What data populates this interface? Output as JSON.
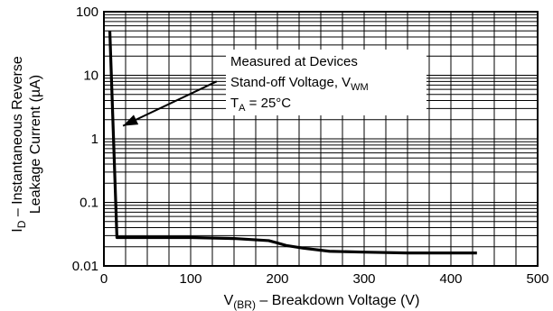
{
  "chart_data": {
    "type": "line",
    "xlabel": {
      "main": "V",
      "sub": "(BR)",
      "rest": " – Breakdown Voltage (V)"
    },
    "ylabel": {
      "line1_main": "I",
      "line1_sub": "D",
      "line1_rest": " – Instantaneous Reverse",
      "line2": "Leakage Current (µA)"
    },
    "xlim": [
      0,
      500
    ],
    "ylim": [
      0.01,
      100
    ],
    "yscale": "log",
    "grid": true,
    "x_ticks": [
      0,
      100,
      200,
      300,
      400,
      500
    ],
    "x_tick_labels": [
      "0",
      "100",
      "200",
      "300",
      "400",
      "500"
    ],
    "y_ticks": [
      0.01,
      0.1,
      1,
      10,
      100
    ],
    "y_tick_labels": [
      "0.01",
      "0.1",
      "1",
      "10",
      "100"
    ],
    "series": [
      {
        "color": "#000000",
        "x": [
          6.8,
          15,
          30,
          60,
          100,
          150,
          190,
          200,
          210,
          230,
          260,
          300,
          350,
          400,
          430
        ],
        "y": [
          50,
          0.028,
          0.028,
          0.028,
          0.028,
          0.027,
          0.025,
          0.023,
          0.021,
          0.019,
          0.017,
          0.0165,
          0.016,
          0.016,
          0.016
        ]
      }
    ],
    "annotation": {
      "line1": "Measured at Devices",
      "line2_main": "Stand-off Voltage, V",
      "line2_sub": "WM",
      "line3_main": "T",
      "line3_sub": "A",
      "line3_rest": " = 25°C",
      "arrow_to": {
        "x": 22,
        "y": 1.6
      },
      "arrow_from": {
        "x": 130,
        "y": 8
      }
    }
  }
}
